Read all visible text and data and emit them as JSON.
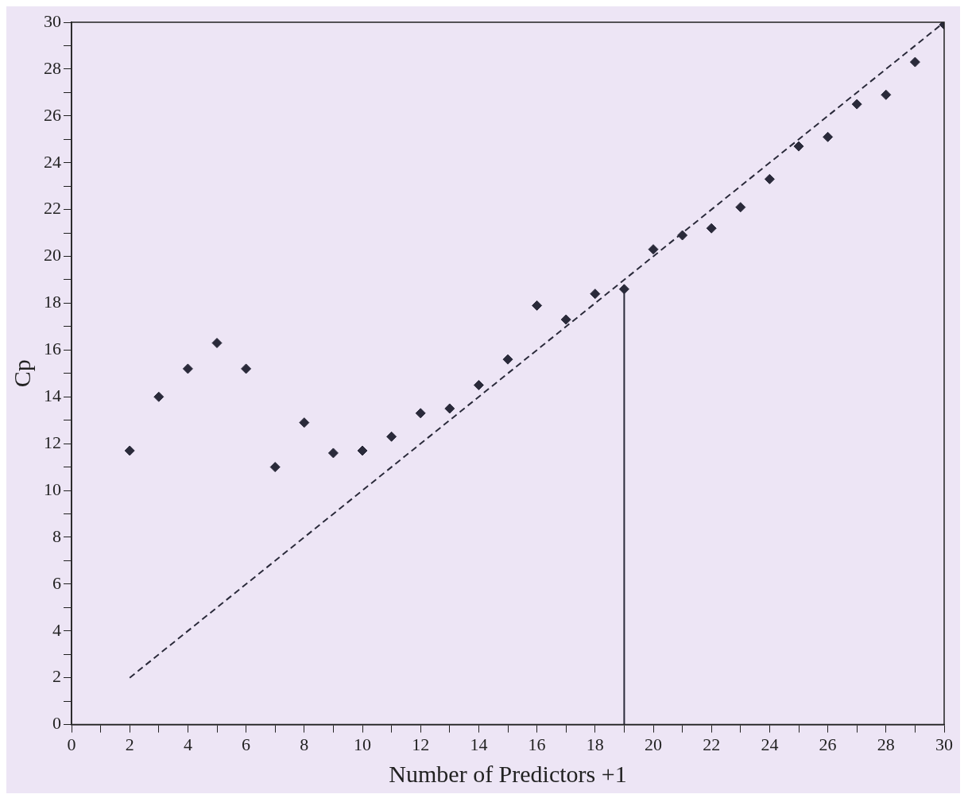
{
  "chart_data": {
    "type": "scatter",
    "xlabel": "Number of Predictors +1",
    "ylabel": "Cp",
    "marker": "diamond",
    "grid": false,
    "legend": false,
    "xlim": [
      0,
      30
    ],
    "ylim": [
      0,
      30
    ],
    "xticks": [
      0,
      {
        "value": 1,
        "label": null
      },
      2,
      {
        "value": 3,
        "label": null
      },
      4,
      {
        "value": 5,
        "label": null
      },
      6,
      {
        "value": 7,
        "label": null
      },
      8,
      {
        "value": 9,
        "label": null
      },
      10,
      {
        "value": 11,
        "label": null
      },
      12,
      {
        "value": 13,
        "label": null
      },
      14,
      {
        "value": 15,
        "label": null
      },
      16,
      {
        "value": 17,
        "label": null
      },
      18,
      {
        "value": 19,
        "label": null
      },
      20,
      {
        "value": 21,
        "label": null
      },
      22,
      {
        "value": 23,
        "label": null
      },
      24,
      {
        "value": 25,
        "label": null
      },
      26,
      {
        "value": 27,
        "label": null
      },
      28,
      {
        "value": 29,
        "label": null
      },
      30
    ],
    "yticks": [
      0,
      {
        "value": 1,
        "label": null
      },
      2,
      {
        "value": 3,
        "label": null
      },
      4,
      {
        "value": 5,
        "label": null
      },
      6,
      {
        "value": 7,
        "label": null
      },
      8,
      {
        "value": 9,
        "label": null
      },
      10,
      {
        "value": 11,
        "label": null
      },
      12,
      {
        "value": 13,
        "label": null
      },
      14,
      {
        "value": 15,
        "label": null
      },
      16,
      {
        "value": 17,
        "label": null
      },
      18,
      {
        "value": 19,
        "label": null
      },
      20,
      {
        "value": 21,
        "label": null
      },
      22,
      {
        "value": 23,
        "label": null
      },
      24,
      {
        "value": 25,
        "label": null
      },
      26,
      {
        "value": 27,
        "label": null
      },
      28,
      {
        "value": 29,
        "label": null
      },
      30
    ],
    "series": [
      {
        "type": "scatter",
        "color": "#2a2a3a",
        "x": [
          2,
          3,
          4,
          5,
          6,
          7,
          8,
          9,
          10,
          11,
          12,
          13,
          14,
          15,
          16,
          17,
          18,
          19,
          20,
          21,
          22,
          23,
          24,
          25,
          26,
          27,
          28,
          29,
          30
        ],
        "values": [
          11.7,
          14.0,
          15.2,
          16.3,
          15.2,
          11.0,
          12.9,
          11.6,
          11.7,
          12.3,
          13.3,
          13.5,
          14.5,
          15.6,
          17.9,
          17.3,
          18.4,
          18.6,
          20.3,
          20.9,
          21.2,
          22.1,
          23.3,
          24.7,
          25.1,
          26.5,
          26.9,
          28.3,
          29.9
        ]
      },
      {
        "type": "line",
        "color": "#2a2a3a",
        "line_style": "dashed",
        "marker": "none",
        "x": [
          2,
          30
        ],
        "values": [
          2,
          30
        ]
      }
    ],
    "ref_lines": [
      {
        "axis": "x",
        "value": 19,
        "color": "#2a2a3a",
        "line_style": "solid"
      }
    ]
  }
}
